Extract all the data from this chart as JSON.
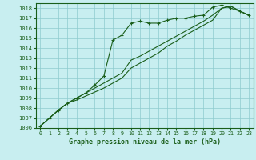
{
  "title": "Graphe pression niveau de la mer (hPa)",
  "bg_color": "#c8eef0",
  "grid_color": "#8ecbce",
  "line_color": "#1a5e1a",
  "marker_color": "#1a5e1a",
  "xlim": [
    -0.5,
    23.5
  ],
  "ylim": [
    1006,
    1018.5
  ],
  "xticks": [
    0,
    1,
    2,
    3,
    4,
    5,
    6,
    7,
    8,
    9,
    10,
    11,
    12,
    13,
    14,
    15,
    16,
    17,
    18,
    19,
    20,
    21,
    22,
    23
  ],
  "yticks": [
    1006,
    1007,
    1008,
    1009,
    1010,
    1011,
    1012,
    1013,
    1014,
    1015,
    1016,
    1017,
    1018
  ],
  "series1_x": [
    0,
    1,
    2,
    3,
    4,
    5,
    6,
    7,
    8,
    9,
    10,
    11,
    12,
    13,
    14,
    15,
    16,
    17,
    18,
    19,
    20,
    21,
    22,
    23
  ],
  "series1_y": [
    1006.2,
    1007.0,
    1007.8,
    1008.5,
    1009.0,
    1009.5,
    1010.3,
    1011.2,
    1014.8,
    1015.3,
    1016.5,
    1016.7,
    1016.5,
    1016.5,
    1016.8,
    1017.0,
    1017.0,
    1017.2,
    1017.3,
    1018.1,
    1018.3,
    1018.0,
    1017.7,
    1017.3
  ],
  "series2_x": [
    0,
    1,
    2,
    3,
    4,
    5,
    6,
    7,
    8,
    9,
    10,
    11,
    12,
    13,
    14,
    15,
    16,
    17,
    18,
    19,
    20,
    21,
    22,
    23
  ],
  "series2_y": [
    1006.2,
    1007.0,
    1007.8,
    1008.5,
    1008.8,
    1009.2,
    1009.6,
    1010.0,
    1010.5,
    1011.0,
    1012.0,
    1012.5,
    1013.0,
    1013.5,
    1014.2,
    1014.7,
    1015.3,
    1015.8,
    1016.3,
    1016.8,
    1018.0,
    1018.2,
    1017.7,
    1017.3
  ],
  "series3_x": [
    0,
    1,
    2,
    3,
    4,
    5,
    6,
    7,
    8,
    9,
    10,
    11,
    12,
    13,
    14,
    15,
    16,
    17,
    18,
    19,
    20,
    21,
    22,
    23
  ],
  "series3_y": [
    1006.2,
    1007.0,
    1007.8,
    1008.5,
    1009.0,
    1009.5,
    1010.0,
    1010.5,
    1011.0,
    1011.5,
    1012.8,
    1013.2,
    1013.7,
    1014.2,
    1014.7,
    1015.2,
    1015.7,
    1016.2,
    1016.7,
    1017.3,
    1018.0,
    1018.2,
    1017.7,
    1017.3
  ]
}
